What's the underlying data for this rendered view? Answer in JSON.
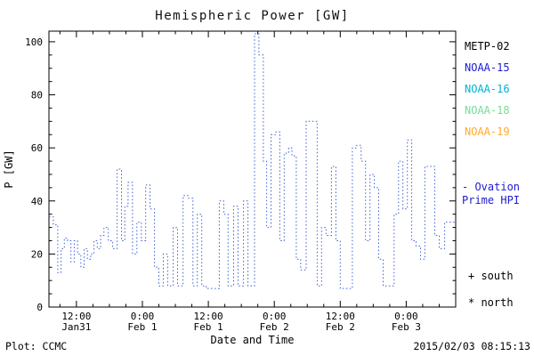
{
  "legend": {
    "satellites": [
      {
        "label": "METP-02",
        "color": "#000000"
      },
      {
        "label": "NOAA-15",
        "color": "#1c1cd0"
      },
      {
        "label": "NOAA-16",
        "color": "#00b4d0"
      },
      {
        "label": "NOAA-18",
        "color": "#78dc96"
      },
      {
        "label": "NOAA-19",
        "color": "#ffaa32"
      }
    ],
    "model_line1": "- Ovation",
    "model_line2": "Prime HPI",
    "model_color": "#1c1cd0",
    "south_marker": "+ south",
    "north_marker": "* north"
  },
  "footer": {
    "plot_credit": "Plot: CCMC",
    "timestamp": "2015/02/03 08:15:13"
  },
  "chart_data": {
    "type": "line",
    "style": "dotted-step",
    "title": "Hemispheric Power [GW]",
    "xlabel": "Date and Time",
    "ylabel": "P [GW]",
    "x_unit": "hours from plot start (Jan 31 ~07:00)",
    "xlim": [
      0,
      74
    ],
    "ylim": [
      0,
      104
    ],
    "yticks": [
      0,
      20,
      40,
      60,
      80,
      100
    ],
    "xticks": [
      {
        "t": 5,
        "time": "12:00",
        "date": "Jan31"
      },
      {
        "t": 17,
        "time": "0:00",
        "date": "Feb 1"
      },
      {
        "t": 29,
        "time": "12:00",
        "date": "Feb 1"
      },
      {
        "t": 41,
        "time": "0:00",
        "date": "Feb 2"
      },
      {
        "t": 53,
        "time": "12:00",
        "date": "Feb 2"
      },
      {
        "t": 65,
        "time": "0:00",
        "date": "Feb 3"
      }
    ],
    "x_minor_step": 3,
    "y_minor_step": 5,
    "series": [
      {
        "name": "Ovation Prime HPI",
        "color": "#3c5fd0",
        "line": "dotted-step",
        "points": [
          [
            0,
            34
          ],
          [
            0.8,
            31
          ],
          [
            1.6,
            13
          ],
          [
            2.2,
            22
          ],
          [
            2.8,
            26
          ],
          [
            3.4,
            25
          ],
          [
            4.0,
            17
          ],
          [
            4.6,
            25
          ],
          [
            5.2,
            20
          ],
          [
            5.8,
            15
          ],
          [
            6.4,
            22
          ],
          [
            7.0,
            18
          ],
          [
            7.6,
            20
          ],
          [
            8.2,
            25
          ],
          [
            8.8,
            22
          ],
          [
            9.4,
            27
          ],
          [
            10.0,
            30
          ],
          [
            10.8,
            25
          ],
          [
            11.6,
            22
          ],
          [
            12.4,
            52
          ],
          [
            13.2,
            25
          ],
          [
            13.8,
            38
          ],
          [
            14.4,
            47
          ],
          [
            15.2,
            20
          ],
          [
            16.0,
            32
          ],
          [
            16.8,
            25
          ],
          [
            17.6,
            46
          ],
          [
            18.4,
            37
          ],
          [
            19.2,
            15
          ],
          [
            20.0,
            8
          ],
          [
            20.8,
            20
          ],
          [
            21.6,
            8
          ],
          [
            22.6,
            30
          ],
          [
            23.4,
            8
          ],
          [
            24.4,
            42
          ],
          [
            25.4,
            41
          ],
          [
            26.2,
            8
          ],
          [
            27.0,
            35
          ],
          [
            27.8,
            8
          ],
          [
            28.6,
            7
          ],
          [
            31.0,
            40
          ],
          [
            31.8,
            35
          ],
          [
            32.6,
            8
          ],
          [
            33.6,
            38
          ],
          [
            34.4,
            8
          ],
          [
            35.4,
            40
          ],
          [
            36.2,
            8
          ],
          [
            37.4,
            103
          ],
          [
            38.2,
            95
          ],
          [
            39.0,
            55
          ],
          [
            39.6,
            30
          ],
          [
            40.4,
            65
          ],
          [
            41.2,
            66
          ],
          [
            42.0,
            25
          ],
          [
            42.8,
            58
          ],
          [
            43.6,
            60
          ],
          [
            44.2,
            57
          ],
          [
            45.0,
            18
          ],
          [
            45.8,
            14
          ],
          [
            46.8,
            70
          ],
          [
            48.0,
            70
          ],
          [
            48.8,
            8
          ],
          [
            49.6,
            30
          ],
          [
            50.4,
            27
          ],
          [
            51.4,
            53
          ],
          [
            52.2,
            25
          ],
          [
            53.0,
            7
          ],
          [
            55.2,
            60
          ],
          [
            56.0,
            61
          ],
          [
            56.8,
            55
          ],
          [
            57.6,
            25
          ],
          [
            58.4,
            50
          ],
          [
            59.2,
            45
          ],
          [
            60.0,
            18
          ],
          [
            60.8,
            8
          ],
          [
            62.8,
            35
          ],
          [
            63.6,
            55
          ],
          [
            64.4,
            37
          ],
          [
            65.2,
            63
          ],
          [
            66.0,
            25
          ],
          [
            66.8,
            23
          ],
          [
            67.6,
            18
          ],
          [
            68.4,
            53
          ],
          [
            69.4,
            53
          ],
          [
            70.2,
            27
          ],
          [
            71.0,
            22
          ],
          [
            72.0,
            32
          ],
          [
            74.0,
            32
          ]
        ]
      }
    ]
  }
}
